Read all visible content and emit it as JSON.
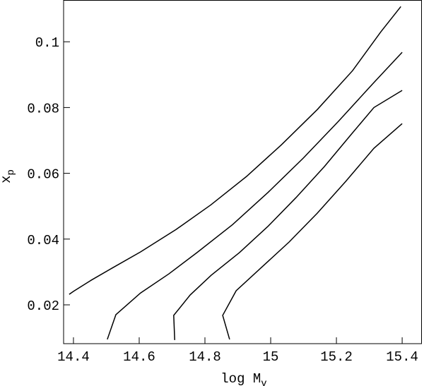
{
  "chart_data": {
    "type": "line",
    "xlabel": "log M",
    "xlabel_sub": "v",
    "ylabel": "x",
    "ylabel_sub": "p",
    "xlim": [
      14.37,
      15.46
    ],
    "ylim": [
      0.0082,
      0.1127
    ],
    "xticks": [
      14.4,
      14.6,
      14.8,
      15,
      15.2,
      15.4
    ],
    "yticks": [
      0.02,
      0.04,
      0.06,
      0.08,
      0.1
    ],
    "series": [
      {
        "color": "#000000",
        "x": [
          14.387,
          14.4,
          14.454,
          14.518,
          14.604,
          14.712,
          14.818,
          14.926,
          15.033,
          15.142,
          15.249,
          15.335,
          15.396
        ],
        "values": [
          0.0232,
          0.0241,
          0.0275,
          0.0312,
          0.0361,
          0.0429,
          0.0504,
          0.059,
          0.0687,
          0.0794,
          0.0912,
          0.103,
          0.1107
        ]
      },
      {
        "color": "#000000",
        "x": [
          14.503,
          14.529,
          14.604,
          14.69,
          14.776,
          14.884,
          14.991,
          15.099,
          15.206,
          15.314,
          15.4
        ],
        "values": [
          0.0095,
          0.017,
          0.0236,
          0.0294,
          0.0359,
          0.0444,
          0.0541,
          0.0646,
          0.0758,
          0.0876,
          0.0968
        ]
      },
      {
        "color": "#000000",
        "x": [
          14.708,
          14.705,
          14.755,
          14.819,
          14.905,
          14.991,
          15.077,
          15.163,
          15.249,
          15.314,
          15.4
        ],
        "values": [
          0.0093,
          0.0168,
          0.023,
          0.029,
          0.0359,
          0.0438,
          0.0526,
          0.062,
          0.0723,
          0.08,
          0.0852
        ]
      },
      {
        "color": "#000000",
        "x": [
          14.875,
          14.854,
          14.895,
          14.97,
          15.056,
          15.142,
          15.228,
          15.314,
          15.4
        ],
        "values": [
          0.0095,
          0.0168,
          0.0243,
          0.0312,
          0.0391,
          0.0479,
          0.0575,
          0.0676,
          0.0751
        ]
      }
    ]
  }
}
